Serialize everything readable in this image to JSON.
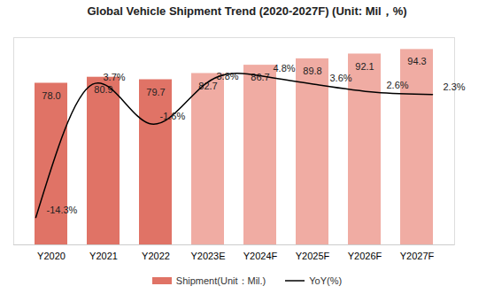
{
  "chart_data": {
    "type": "bar",
    "title": "Global Vehicle Shipment Trend (2020-2027F) (Unit: Mil，%)",
    "categories": [
      "Y2020",
      "Y2021",
      "Y2022",
      "Y2023E",
      "Y2024F",
      "Y2025F",
      "Y2026F",
      "Y2027F"
    ],
    "series": [
      {
        "name": "Shipment(Unit：Mil.)",
        "type": "bar",
        "colors": [
          "#e07366",
          "#e07366",
          "#e07366",
          "#f0aca3",
          "#f0aca3",
          "#f0aca3",
          "#f0aca3",
          "#f0aca3"
        ],
        "values": [
          78.0,
          80.9,
          79.7,
          82.7,
          86.7,
          89.8,
          92.1,
          94.3
        ],
        "value_labels": [
          "78.0",
          "80.9",
          "79.7",
          "82.7",
          "86.7",
          "89.8",
          "92.1",
          "94.3"
        ]
      },
      {
        "name": "YoY(%)",
        "type": "line",
        "axis": "y2",
        "color": "#000000",
        "line_style": "solid",
        "values": [
          -14.3,
          3.7,
          -1.6,
          3.8,
          4.8,
          3.6,
          2.6,
          2.3
        ],
        "value_labels": [
          "-14.3%",
          "3.7%",
          "-1.6%",
          "3.8%",
          "4.8%",
          "3.6%",
          "2.6%",
          "2.3%"
        ]
      }
    ],
    "ylim": [
      0,
      100
    ],
    "yticks": [],
    "y2lim": [
      -18,
      10
    ],
    "y2ticks": [],
    "tick_labels": "x",
    "data_labels": true,
    "grid": false,
    "legend": "bottom"
  }
}
